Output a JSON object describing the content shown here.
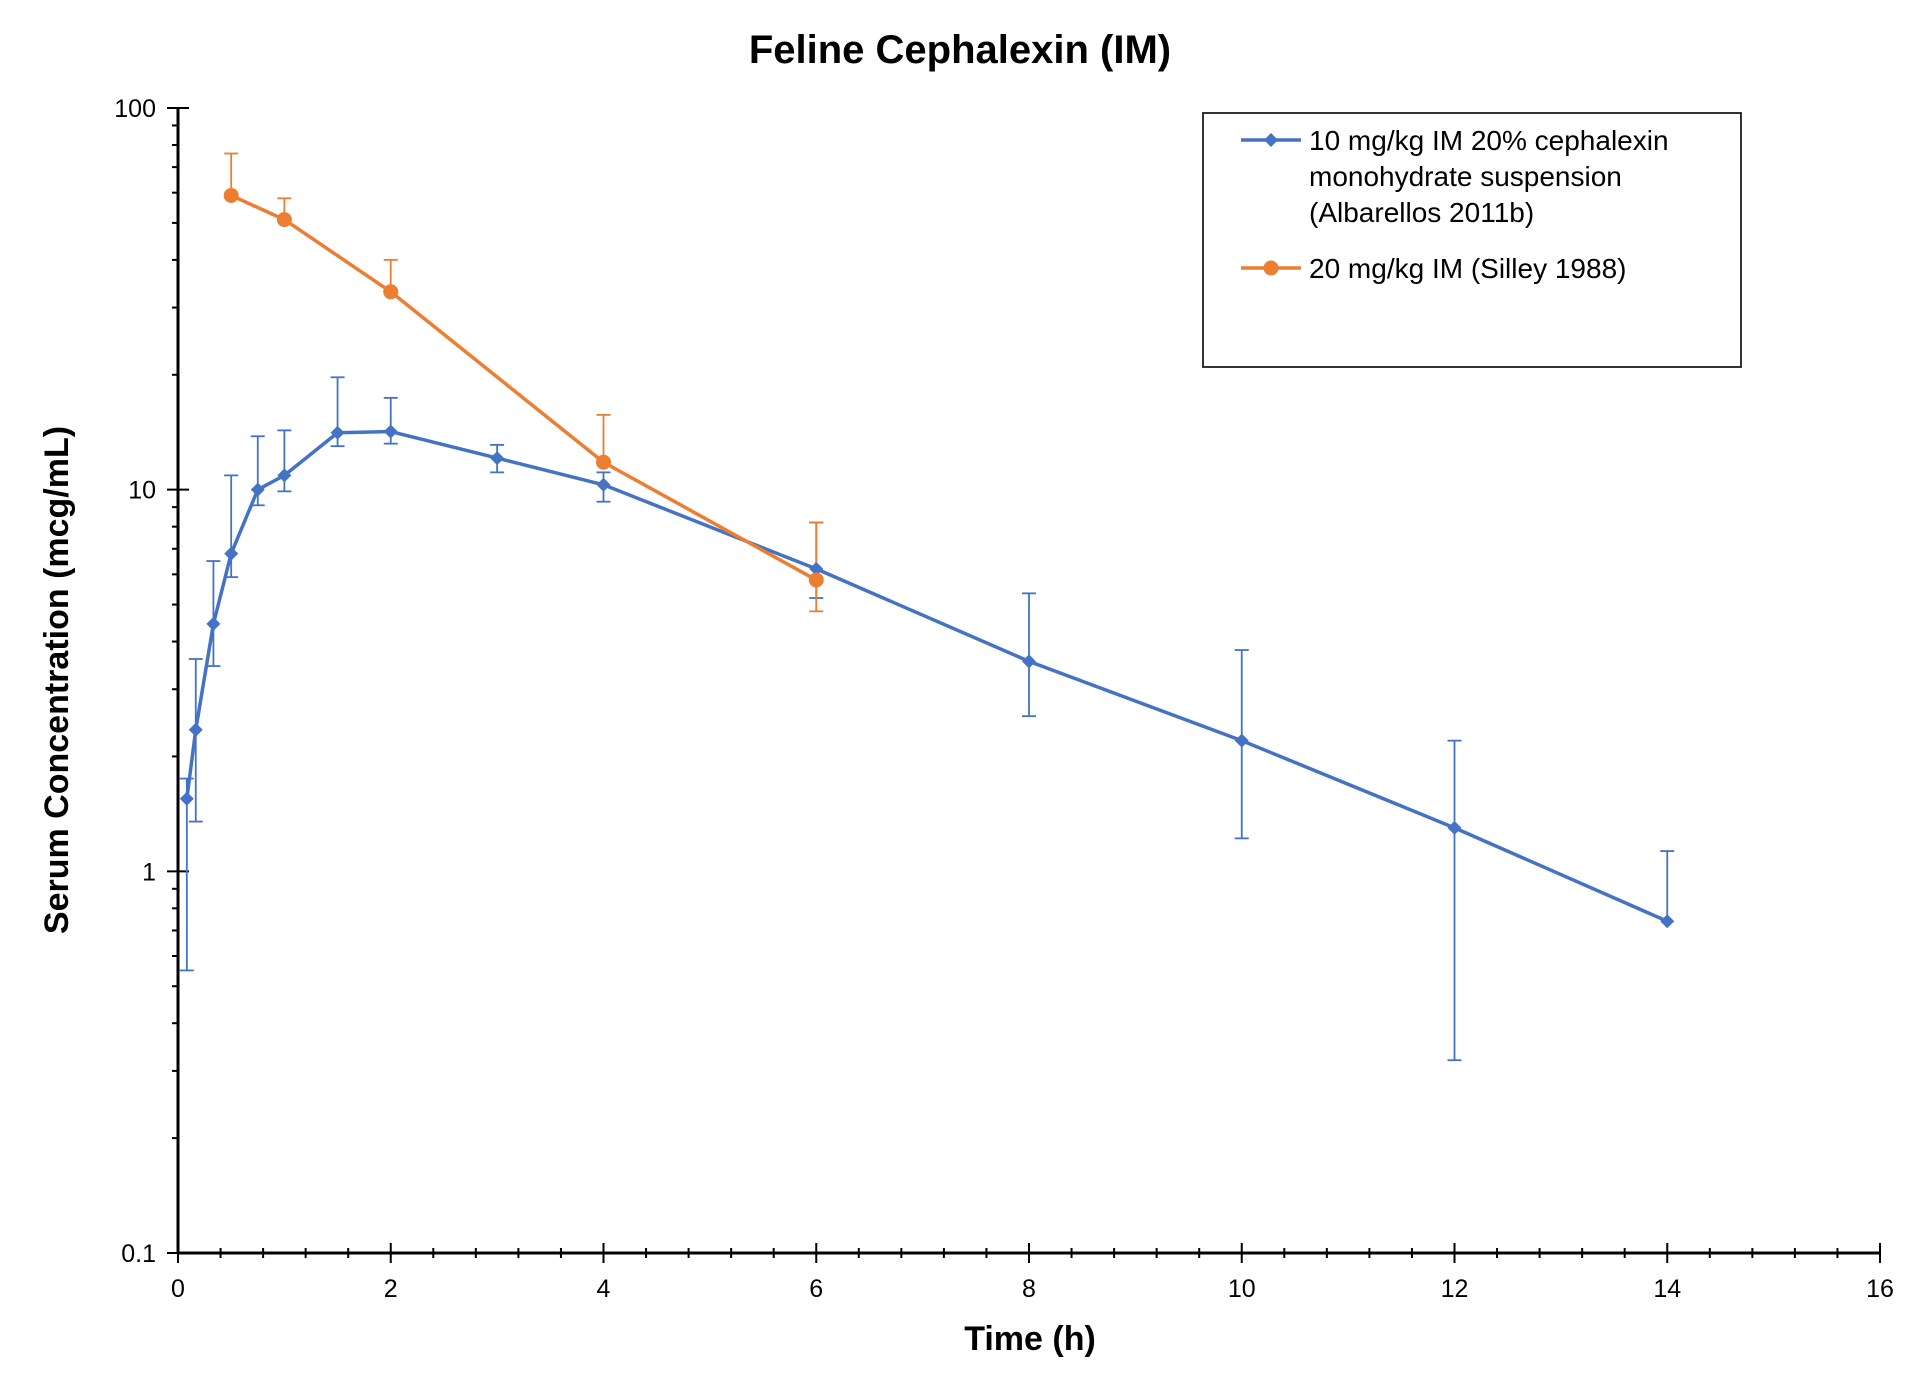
{
  "chart_data": {
    "type": "line",
    "title": "Feline Cephalexin (IM)",
    "xlabel": "Time (h)",
    "ylabel": "Serum Concentration (mcg/mL)",
    "xlim": [
      0,
      16
    ],
    "ylim": [
      0.1,
      100
    ],
    "yscale": "log",
    "x_ticks": [
      "0",
      "2",
      "4",
      "6",
      "8",
      "10",
      "12",
      "14",
      "16"
    ],
    "y_ticks": [
      "0.1",
      "1",
      "10",
      "100"
    ],
    "grid": false,
    "legend_position": "top-right",
    "series": [
      {
        "name": "10 mg/kg IM 20% cephalexin monohydrate suspension (Albarellos 2011b)",
        "legend_lines": [
          "10 mg/kg IM 20% cephalexin",
          "monohydrate suspension",
          "(Albarellos 2011b)"
        ],
        "color": "#4472C4",
        "marker": "diamond",
        "x": [
          0.083,
          0.167,
          0.333,
          0.5,
          0.75,
          1,
          1.5,
          2,
          3,
          4,
          6,
          8,
          10,
          12,
          14
        ],
        "y": [
          1.55,
          2.35,
          4.45,
          6.8,
          10.0,
          10.9,
          14.1,
          14.2,
          12.1,
          10.3,
          6.2,
          3.55,
          2.2,
          1.3,
          0.74
        ],
        "err_hi": [
          1.75,
          3.6,
          6.5,
          10.9,
          13.8,
          14.3,
          19.7,
          17.4,
          13.1,
          11.1,
          8.2,
          5.35,
          3.8,
          2.2,
          1.13
        ],
        "err_lo": [
          0.55,
          1.35,
          3.45,
          5.9,
          9.1,
          9.9,
          13.0,
          13.2,
          11.1,
          9.3,
          5.2,
          2.55,
          1.22,
          0.32,
          0.74
        ]
      },
      {
        "name": "20 mg/kg IM (Silley 1988)",
        "legend_lines": [
          "20 mg/kg IM (Silley 1988)"
        ],
        "color": "#ED7D31",
        "marker": "circle",
        "x": [
          0.5,
          1,
          2,
          4,
          6
        ],
        "y": [
          59,
          51,
          33,
          11.8,
          5.8
        ],
        "err_hi": [
          76,
          58,
          40,
          15.7,
          8.2
        ],
        "err_lo": [
          59,
          51,
          33,
          11.8,
          4.8
        ]
      }
    ]
  }
}
